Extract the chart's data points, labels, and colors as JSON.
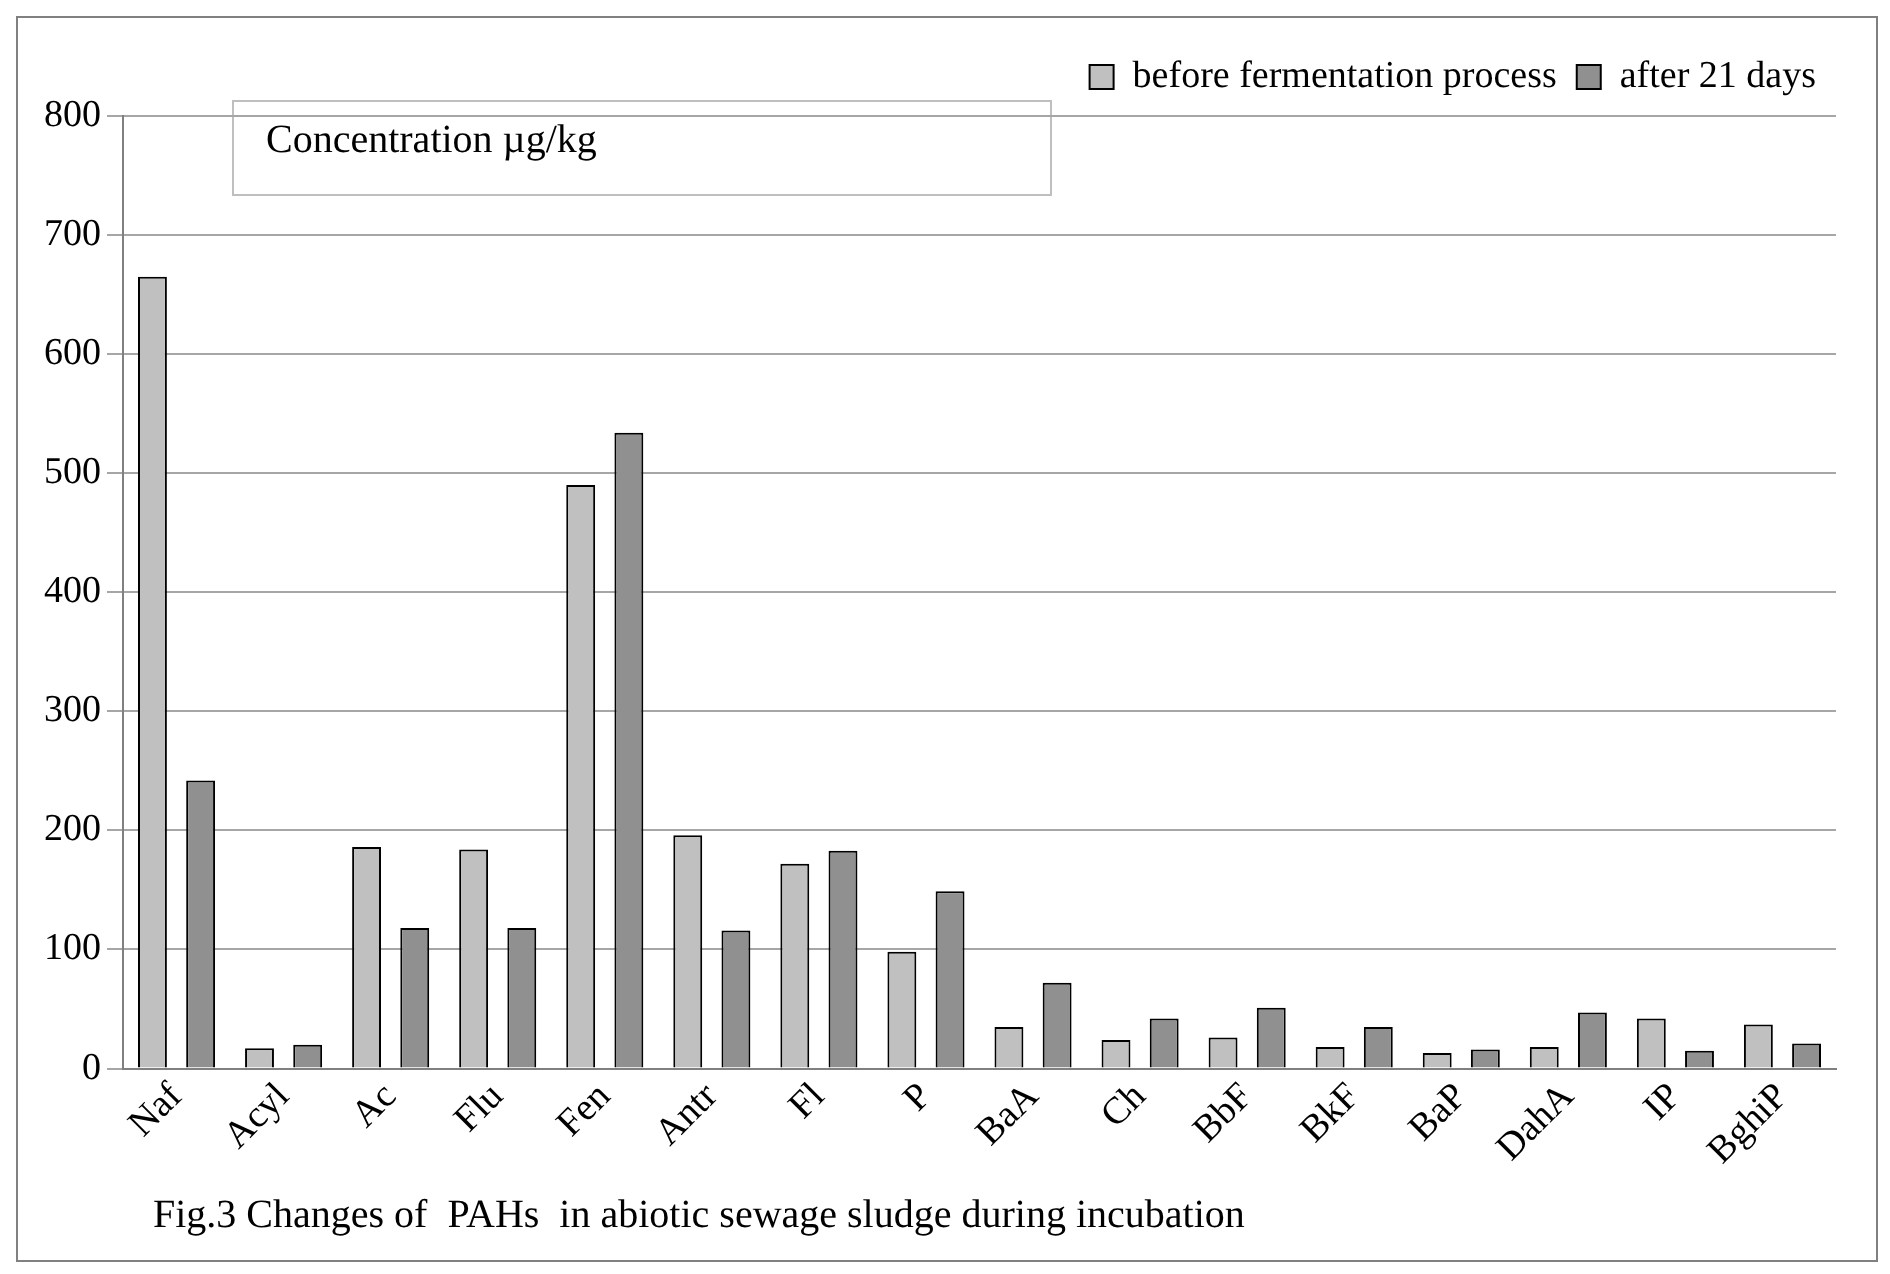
{
  "chart_data": {
    "type": "bar",
    "ylabel": "Concentration µg/kg",
    "categories": [
      "Naf",
      "Acyl",
      "Ac",
      "Flu",
      "Fen",
      "Antr",
      "Fl",
      "P",
      "BaA",
      "Ch",
      "BbF",
      "BkF",
      "BaP",
      "DahA",
      "IP",
      "BghiP"
    ],
    "series": [
      {
        "name": "before fermentation process",
        "color": "#c0c0c0",
        "values": [
          665,
          17,
          186,
          184,
          490,
          196,
          172,
          98,
          35,
          24,
          26,
          18,
          13,
          18,
          42,
          37
        ]
      },
      {
        "name": "after 21 days",
        "color": "#909090",
        "values": [
          242,
          20,
          118,
          118,
          534,
          116,
          183,
          149,
          72,
          42,
          51,
          35,
          16,
          47,
          15,
          21
        ]
      }
    ],
    "ylim": [
      0,
      800
    ],
    "yticks": [
      0,
      100,
      200,
      300,
      400,
      500,
      600,
      700,
      800
    ],
    "grid": "y",
    "legend": "top right",
    "annotations": [
      "Fig.3 Changes of  PAHs  in abiotic sewage sludge during incubation"
    ]
  }
}
